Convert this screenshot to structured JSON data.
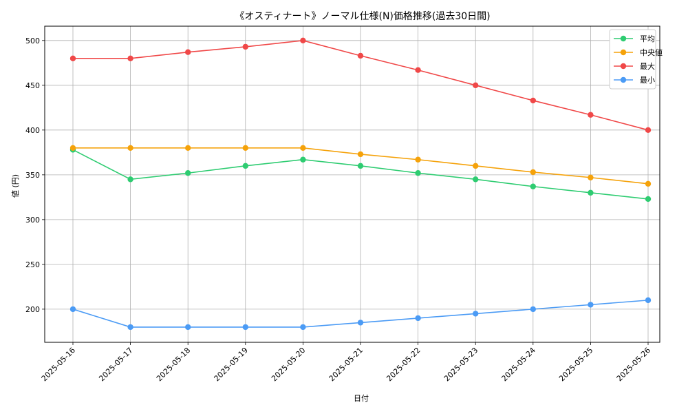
{
  "chart_data": {
    "type": "line",
    "title": "《オスティナート》ノーマル仕様(N)価格推移(過去30日間)",
    "xlabel": "日付",
    "ylabel": "値 (円)",
    "ylim": [
      163,
      516
    ],
    "yticks": [
      200,
      250,
      300,
      350,
      400,
      450,
      500
    ],
    "grid": true,
    "legend_position": "top-right",
    "categories": [
      "2025-05-16",
      "2025-05-17",
      "2025-05-18",
      "2025-05-19",
      "2025-05-20",
      "2025-05-21",
      "2025-05-22",
      "2025-05-23",
      "2025-05-24",
      "2025-05-25",
      "2025-05-26"
    ],
    "series": [
      {
        "name": "平均",
        "color": "#2ecc71",
        "values": [
          378,
          345,
          352,
          360,
          367,
          360,
          352,
          345,
          337,
          330,
          323
        ]
      },
      {
        "name": "中央値",
        "color": "#f5a20a",
        "values": [
          380,
          380,
          380,
          380,
          380,
          373,
          367,
          360,
          353,
          347,
          340
        ]
      },
      {
        "name": "最大",
        "color": "#f04848",
        "values": [
          480,
          480,
          487,
          493,
          500,
          483,
          467,
          450,
          433,
          417,
          400
        ]
      },
      {
        "name": "最小",
        "color": "#4b9bf5",
        "values": [
          200,
          180,
          180,
          180,
          180,
          185,
          190,
          195,
          200,
          205,
          210
        ]
      }
    ]
  }
}
